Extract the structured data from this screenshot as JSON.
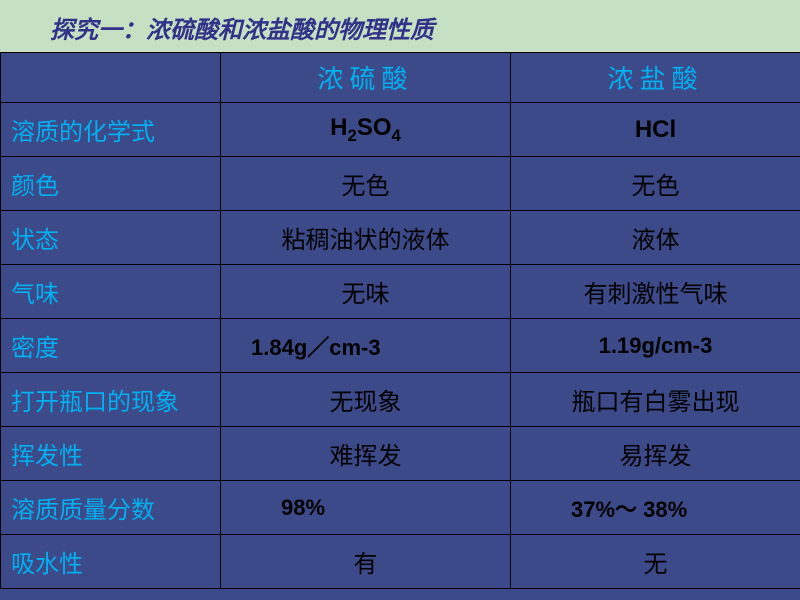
{
  "title": "探究一：浓硫酸和浓盐酸的物理性质",
  "header": {
    "col1": "",
    "col2": "浓硫酸",
    "col3": "浓盐酸"
  },
  "rows": {
    "formula": {
      "label": "溶质的化学式",
      "h2so4_html": "H<sub>2</sub>SO<sub>4</sub>",
      "hcl": "HCl"
    },
    "color": {
      "label": "颜色",
      "a": "无色",
      "b": "无色"
    },
    "state": {
      "label": "状态",
      "a": "粘稠油状的液体",
      "b": "液体"
    },
    "smell": {
      "label": "气味",
      "a": "无味",
      "b": "有刺激性气味"
    },
    "density": {
      "label": "密度",
      "a": "1.84g／cm-3",
      "b": "1.19g/cm-3"
    },
    "open": {
      "label": "打开瓶口的现象",
      "a": "无现象",
      "b": "瓶口有白雾出现"
    },
    "volatile": {
      "label": "挥发性",
      "a": "难挥发",
      "b": "易挥发"
    },
    "mass": {
      "label": "溶质质量分数",
      "a": "98%",
      "b": "37%～ 38%"
    },
    "absorb": {
      "label": "吸水性",
      "a": "有",
      "b": "无"
    }
  }
}
